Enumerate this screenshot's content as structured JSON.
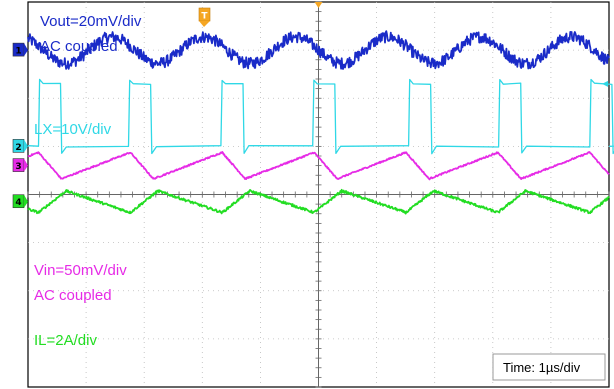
{
  "chart_data": {
    "type": "line",
    "title": "",
    "xlabel": "",
    "ylabel": "",
    "time_scale": "Time: 1µs/div",
    "grid": true,
    "x_unit": "µs",
    "xlim": [
      0,
      10
    ],
    "divisions": {
      "x": 10,
      "y": 8
    },
    "trigger_marker": "T",
    "series": [
      {
        "channel": "1",
        "name": "Vout",
        "label_lines": [
          "Vout=20mV/div",
          "AC coupled"
        ],
        "color": "#1a2bc8",
        "waveform": "ripple",
        "ripple_pp_div": 0.55,
        "noise_div": 0.12,
        "zero_level_div": 3.0
      },
      {
        "channel": "2",
        "name": "LX",
        "label_lines": [
          "LX=10V/div"
        ],
        "color": "#2fd8e6",
        "waveform": "pulse",
        "low_div": 0.0,
        "high_div": 1.3,
        "pulse_rises_us": [
          0.18,
          1.73,
          3.32,
          4.9,
          6.55,
          8.1,
          9.67
        ],
        "pulse_width_us": 0.38,
        "zero_level_div": 1.0
      },
      {
        "channel": "3",
        "name": "Vin",
        "label_lines": [
          "Vin=50mV/div",
          "AC coupled"
        ],
        "color": "#e62be6",
        "waveform": "sawtooth",
        "ripple_pp_div": 0.55,
        "zero_level_div": 0.6
      },
      {
        "channel": "4",
        "name": "IL",
        "label_lines": [
          "IL=2A/div"
        ],
        "color": "#22dd22",
        "waveform": "triangle",
        "ripple_pp_div": 0.45,
        "zero_level_div": -0.15
      }
    ]
  }
}
